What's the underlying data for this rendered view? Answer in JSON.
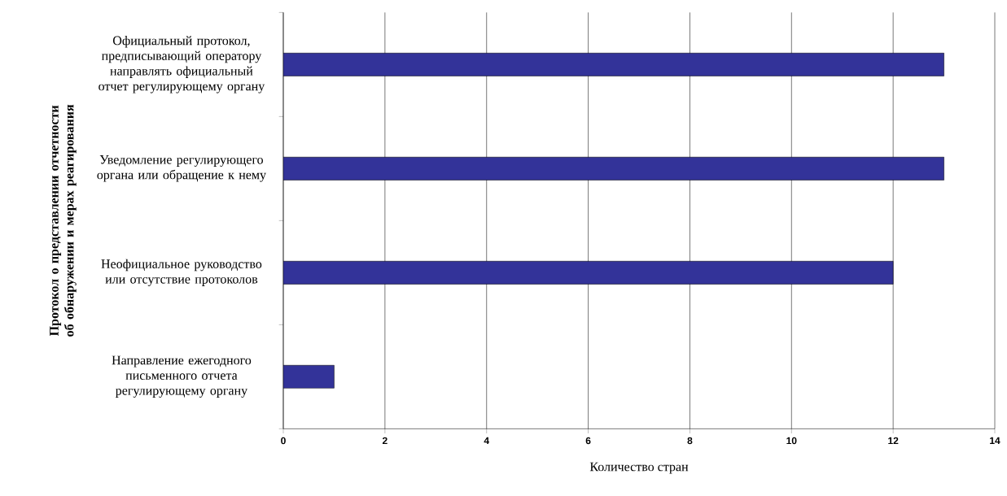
{
  "chart_data": {
    "type": "bar",
    "orientation": "horizontal",
    "categories": [
      "Официальный протокол, предписывающий оператору направлять официальный отчет регулирующему органу",
      "Уведомление регулирующего органа или обращение к нему",
      "Неофициальное руководство или отсутствие протоколов",
      "Направление ежегодного письменного отчета регулирующему органу"
    ],
    "values": [
      13,
      13,
      12,
      1
    ],
    "color": "#333399",
    "xlim": [
      0,
      14
    ],
    "xticks": [
      0,
      2,
      4,
      6,
      8,
      10,
      12,
      14
    ],
    "grid": "x",
    "xlabel": "Количество стран",
    "ylabel": "Протокол о представлении отчетности об обнаружении и мерах реагирования"
  }
}
